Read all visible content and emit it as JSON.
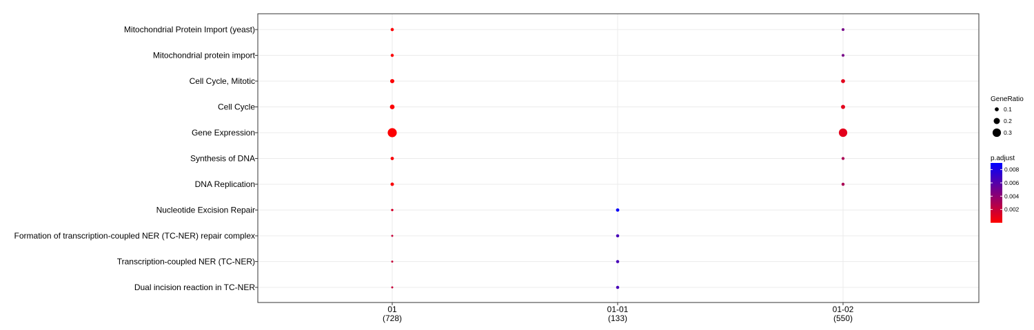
{
  "chart_data": {
    "type": "scatter",
    "categories_x": [
      {
        "name": "01",
        "count": "(728)"
      },
      {
        "name": "01-01",
        "count": "(133)"
      },
      {
        "name": "01-02",
        "count": "(550)"
      }
    ],
    "categories_y": [
      "Mitochondrial Protein Import (yeast)",
      "Mitochondrial protein import",
      "Cell Cycle, Mitotic",
      "Cell Cycle",
      "Gene Expression",
      "Synthesis of DNA",
      "DNA Replication",
      "Nucleotide Excision Repair",
      "Formation of transcription-coupled NER (TC-NER) repair complex",
      "Transcription-coupled NER (TC-NER)",
      "Dual incision reaction in TC-NER"
    ],
    "points": [
      {
        "x": "01",
        "y": "Mitochondrial Protein Import (yeast)",
        "gene_ratio": 0.065,
        "p_adjust": 0.0001
      },
      {
        "x": "01",
        "y": "Mitochondrial protein import",
        "gene_ratio": 0.06,
        "p_adjust": 0.0001
      },
      {
        "x": "01",
        "y": "Cell Cycle, Mitotic",
        "gene_ratio": 0.11,
        "p_adjust": 0.0001
      },
      {
        "x": "01",
        "y": "Cell Cycle",
        "gene_ratio": 0.13,
        "p_adjust": 0.0001
      },
      {
        "x": "01",
        "y": "Gene Expression",
        "gene_ratio": 0.33,
        "p_adjust": 0.0001
      },
      {
        "x": "01",
        "y": "Synthesis of DNA",
        "gene_ratio": 0.07,
        "p_adjust": 0.0002
      },
      {
        "x": "01",
        "y": "DNA Replication",
        "gene_ratio": 0.075,
        "p_adjust": 0.0002
      },
      {
        "x": "01",
        "y": "Nucleotide Excision Repair",
        "gene_ratio": 0.025,
        "p_adjust": 0.0015
      },
      {
        "x": "01",
        "y": "Formation of transcription-coupled NER (TC-NER) repair complex",
        "gene_ratio": 0.012,
        "p_adjust": 0.002
      },
      {
        "x": "01",
        "y": "Transcription-coupled NER (TC-NER)",
        "gene_ratio": 0.013,
        "p_adjust": 0.002
      },
      {
        "x": "01",
        "y": "Dual incision reaction in TC-NER",
        "gene_ratio": 0.012,
        "p_adjust": 0.002
      },
      {
        "x": "01-01",
        "y": "Nucleotide Excision Repair",
        "gene_ratio": 0.07,
        "p_adjust": 0.0088
      },
      {
        "x": "01-01",
        "y": "Formation of transcription-coupled NER (TC-NER) repair complex",
        "gene_ratio": 0.06,
        "p_adjust": 0.0065
      },
      {
        "x": "01-01",
        "y": "Transcription-coupled NER (TC-NER)",
        "gene_ratio": 0.06,
        "p_adjust": 0.0065
      },
      {
        "x": "01-01",
        "y": "Dual incision reaction in TC-NER",
        "gene_ratio": 0.06,
        "p_adjust": 0.0065
      },
      {
        "x": "01-02",
        "y": "Mitochondrial Protein Import (yeast)",
        "gene_ratio": 0.045,
        "p_adjust": 0.0048
      },
      {
        "x": "01-02",
        "y": "Mitochondrial protein import",
        "gene_ratio": 0.045,
        "p_adjust": 0.0048
      },
      {
        "x": "01-02",
        "y": "Cell Cycle, Mitotic",
        "gene_ratio": 0.1,
        "p_adjust": 0.001
      },
      {
        "x": "01-02",
        "y": "Cell Cycle",
        "gene_ratio": 0.105,
        "p_adjust": 0.001
      },
      {
        "x": "01-02",
        "y": "Gene Expression",
        "gene_ratio": 0.3,
        "p_adjust": 0.001
      },
      {
        "x": "01-02",
        "y": "Synthesis of DNA",
        "gene_ratio": 0.055,
        "p_adjust": 0.003
      },
      {
        "x": "01-02",
        "y": "DNA Replication",
        "gene_ratio": 0.058,
        "p_adjust": 0.003
      }
    ],
    "size_legend": {
      "title": "GeneRatio",
      "values": [
        0.1,
        0.2,
        0.3
      ],
      "labels": [
        "0.1",
        "0.2",
        "0.3"
      ]
    },
    "color_legend": {
      "title": "p.adjust",
      "range": [
        0.0,
        0.009
      ],
      "ticks": [
        0.002,
        0.004,
        0.006,
        0.008
      ],
      "tick_labels": [
        "0.002",
        "0.004",
        "0.006",
        "0.008"
      ],
      "low_color": "#ff0000",
      "high_color": "#0000ff"
    },
    "grid": true,
    "legend_position": "right",
    "colors": {
      "panel_border": "#333333",
      "grid": "#ebebeb",
      "point_low": "#ff0000",
      "point_high": "#0000ff"
    }
  }
}
